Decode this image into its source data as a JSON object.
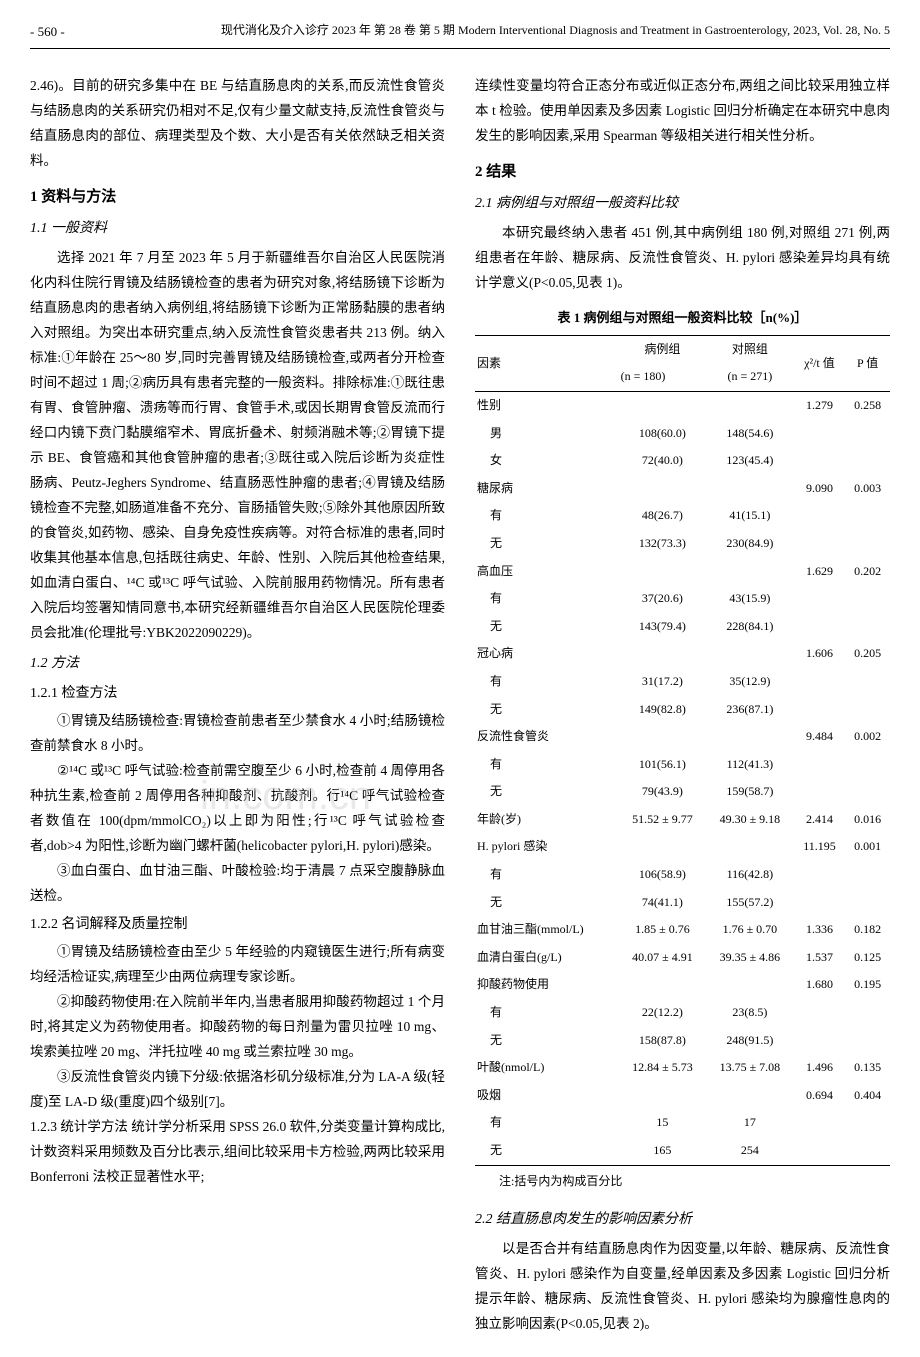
{
  "header": {
    "page_num": "- 560 -",
    "journal_cn": "现代消化及介入诊疗  2023 年 第 28 卷 第 5 期",
    "journal_en": "Modern Interventional Diagnosis and Treatment in Gastroenterology, 2023, Vol. 28, No. 5"
  },
  "watermark": "in.com.cn",
  "left_column": {
    "intro": "2.46)。目前的研究多集中在 BE 与结直肠息肉的关系,而反流性食管炎与结肠息肉的关系研究仍相对不足,仅有少量文献支持,反流性食管炎与结直肠息肉的部位、病理类型及个数、大小是否有关依然缺乏相关资料。",
    "sec1_title": "1 资料与方法",
    "sub11": "1.1 一般资料",
    "sub11_p": "选择 2021 年 7 月至 2023 年 5 月于新疆维吾尔自治区人民医院消化内科住院行胃镜及结肠镜检查的患者为研究对象,将结肠镜下诊断为结直肠息肉的患者纳入病例组,将结肠镜下诊断为正常肠黏膜的患者纳入对照组。为突出本研究重点,纳入反流性食管炎患者共 213 例。纳入标准:①年龄在 25～80 岁,同时完善胃镜及结肠镜检查,或两者分开检查时间不超过 1 周;②病历具有患者完整的一般资料。排除标准:①既往患有胃、食管肿瘤、溃疡等而行胃、食管手术,或因长期胃食管反流而行经口内镜下贲门黏膜缩窄术、胃底折叠术、射频消融术等;②胃镜下提示 BE、食管癌和其他食管肿瘤的患者;③既往或入院后诊断为炎症性肠病、Peutz-Jeghers Syndrome、结直肠恶性肿瘤的患者;④胃镜及结肠镜检查不完整,如肠道准备不充分、盲肠插管失败;⑤除外其他原因所致的食管炎,如药物、感染、自身免疫性疾病等。对符合标准的患者,同时收集其他基本信息,包括既往病史、年龄、性别、入院后其他检查结果,如血清白蛋白、¹⁴C 或¹³C 呼气试验、入院前服用药物情况。所有患者入院后均签署知情同意书,本研究经新疆维吾尔自治区人民医院伦理委员会批准(伦理批号:YBK2022090229)。",
    "sub12": "1.2 方法",
    "sub121": "1.2.1 检查方法",
    "sub121_p1": "①胃镜及结肠镜检查:胃镜检查前患者至少禁食水 4 小时;结肠镜检查前禁食水 8 小时。",
    "sub121_p2": "②¹⁴C 或¹³C 呼气试验:检查前需空腹至少 6 小时,检查前 4 周停用各种抗生素,检查前 2 周停用各种抑酸剂、抗酸剂。行¹⁴C 呼气试验检查者数值在 100(dpm/mmolCO₂)以上即为阳性;行¹³C 呼气试验检查者,dob>4 为阳性,诊断为幽门螺杆菌(helicobacter pylori,H. pylori)感染。",
    "sub121_p3": "③血白蛋白、血甘油三酯、叶酸检验:均于清晨 7 点采空腹静脉血送检。",
    "sub122": "1.2.2 名词解释及质量控制",
    "sub122_p1": "①胃镜及结肠镜检查由至少 5 年经验的内窥镜医生进行;所有病变均经活检证实,病理至少由两位病理专家诊断。",
    "sub122_p2": "②抑酸药物使用:在入院前半年内,当患者服用抑酸药物超过 1 个月时,将其定义为药物使用者。抑酸药物的每日剂量为雷贝拉唑 10 mg、埃索美拉唑 20 mg、泮托拉唑 40 mg 或兰索拉唑 30 mg。",
    "sub122_p3": "③反流性食管炎内镜下分级:依据洛杉矶分级标准,分为 LA-A 级(轻度)至 LA-D 级(重度)四个级别[7]。",
    "sub123": "1.2.3 统计学方法 统计学分析采用 SPSS 26.0 软件,分类变量计算构成比,计数资料采用频数及百分比表示,组间比较采用卡方检验,两两比较采用 Bonferroni 法校正显著性水平;"
  },
  "right_column": {
    "top_p": "连续性变量均符合正态分布或近似正态分布,两组之间比较采用独立样本 t 检验。使用单因素及多因素 Logistic 回归分析确定在本研究中息肉发生的影响因素,采用 Spearman 等级相关进行相关性分析。",
    "sec2_title": "2 结果",
    "sub21": "2.1 病例组与对照组一般资料比较",
    "sub21_p": "本研究最终纳入患者 451 例,其中病例组 180 例,对照组 271 例,两组患者在年龄、糖尿病、反流性食管炎、H. pylori 感染差异均具有统计学意义(P<0.05,见表 1)。",
    "table1": {
      "title": "表 1  病例组与对照组一般资料比较［n(%)］",
      "headers": {
        "factor": "因素",
        "case": "病例组",
        "case_n": "(n = 180)",
        "control": "对照组",
        "control_n": "(n = 271)",
        "stat": "χ²/t 值",
        "p": "P 值"
      },
      "rows": [
        {
          "label": "性别",
          "c1": "",
          "c2": "",
          "stat": "1.279",
          "p": "0.258",
          "indent": false
        },
        {
          "label": "男",
          "c1": "108(60.0)",
          "c2": "148(54.6)",
          "stat": "",
          "p": "",
          "indent": true
        },
        {
          "label": "女",
          "c1": "72(40.0)",
          "c2": "123(45.4)",
          "stat": "",
          "p": "",
          "indent": true
        },
        {
          "label": "糖尿病",
          "c1": "",
          "c2": "",
          "stat": "9.090",
          "p": "0.003",
          "indent": false
        },
        {
          "label": "有",
          "c1": "48(26.7)",
          "c2": "41(15.1)",
          "stat": "",
          "p": "",
          "indent": true
        },
        {
          "label": "无",
          "c1": "132(73.3)",
          "c2": "230(84.9)",
          "stat": "",
          "p": "",
          "indent": true
        },
        {
          "label": "高血压",
          "c1": "",
          "c2": "",
          "stat": "1.629",
          "p": "0.202",
          "indent": false
        },
        {
          "label": "有",
          "c1": "37(20.6)",
          "c2": "43(15.9)",
          "stat": "",
          "p": "",
          "indent": true
        },
        {
          "label": "无",
          "c1": "143(79.4)",
          "c2": "228(84.1)",
          "stat": "",
          "p": "",
          "indent": true
        },
        {
          "label": "冠心病",
          "c1": "",
          "c2": "",
          "stat": "1.606",
          "p": "0.205",
          "indent": false
        },
        {
          "label": "有",
          "c1": "31(17.2)",
          "c2": "35(12.9)",
          "stat": "",
          "p": "",
          "indent": true
        },
        {
          "label": "无",
          "c1": "149(82.8)",
          "c2": "236(87.1)",
          "stat": "",
          "p": "",
          "indent": true
        },
        {
          "label": "反流性食管炎",
          "c1": "",
          "c2": "",
          "stat": "9.484",
          "p": "0.002",
          "indent": false
        },
        {
          "label": "有",
          "c1": "101(56.1)",
          "c2": "112(41.3)",
          "stat": "",
          "p": "",
          "indent": true
        },
        {
          "label": "无",
          "c1": "79(43.9)",
          "c2": "159(58.7)",
          "stat": "",
          "p": "",
          "indent": true
        },
        {
          "label": "年龄(岁)",
          "c1": "51.52 ± 9.77",
          "c2": "49.30 ± 9.18",
          "stat": "2.414",
          "p": "0.016",
          "indent": false
        },
        {
          "label": "H. pylori 感染",
          "c1": "",
          "c2": "",
          "stat": "11.195",
          "p": "0.001",
          "indent": false
        },
        {
          "label": "有",
          "c1": "106(58.9)",
          "c2": "116(42.8)",
          "stat": "",
          "p": "",
          "indent": true
        },
        {
          "label": "无",
          "c1": "74(41.1)",
          "c2": "155(57.2)",
          "stat": "",
          "p": "",
          "indent": true
        },
        {
          "label": "血甘油三酯(mmol/L)",
          "c1": "1.85 ± 0.76",
          "c2": "1.76 ± 0.70",
          "stat": "1.336",
          "p": "0.182",
          "indent": false
        },
        {
          "label": "血清白蛋白(g/L)",
          "c1": "40.07 ± 4.91",
          "c2": "39.35 ± 4.86",
          "stat": "1.537",
          "p": "0.125",
          "indent": false
        },
        {
          "label": "抑酸药物使用",
          "c1": "",
          "c2": "",
          "stat": "1.680",
          "p": "0.195",
          "indent": false
        },
        {
          "label": "有",
          "c1": "22(12.2)",
          "c2": "23(8.5)",
          "stat": "",
          "p": "",
          "indent": true
        },
        {
          "label": "无",
          "c1": "158(87.8)",
          "c2": "248(91.5)",
          "stat": "",
          "p": "",
          "indent": true
        },
        {
          "label": "叶酸(nmol/L)",
          "c1": "12.84 ± 5.73",
          "c2": "13.75 ± 7.08",
          "stat": "1.496",
          "p": "0.135",
          "indent": false
        },
        {
          "label": "吸烟",
          "c1": "",
          "c2": "",
          "stat": "0.694",
          "p": "0.404",
          "indent": false
        },
        {
          "label": "有",
          "c1": "15",
          "c2": "17",
          "stat": "",
          "p": "",
          "indent": true
        },
        {
          "label": "无",
          "c1": "165",
          "c2": "254",
          "stat": "",
          "p": "",
          "indent": true
        }
      ],
      "note": "注:括号内为构成百分比"
    },
    "sub22": "2.2 结直肠息肉发生的影响因素分析",
    "sub22_p": "以是否合并有结直肠息肉作为因变量,以年龄、糖尿病、反流性食管炎、H. pylori 感染作为自变量,经单因素及多因素 Logistic 回归分析提示年龄、糖尿病、反流性食管炎、H. pylori 感染均为腺瘤性息肉的独立影响因素(P<0.05,见表 2)。"
  }
}
